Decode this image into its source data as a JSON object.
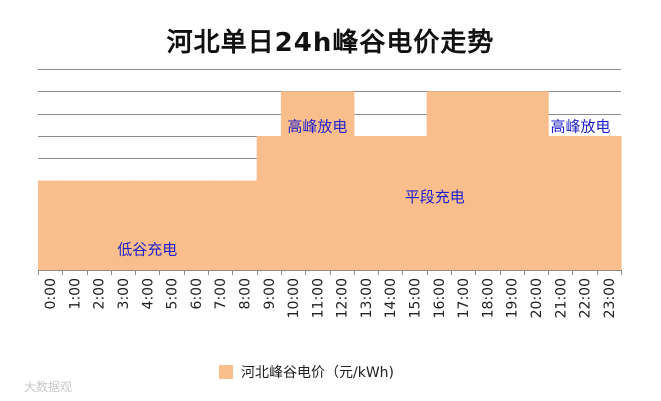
{
  "chart_data": {
    "type": "area",
    "title": "河北单日24h峰谷电价走势",
    "categories": [
      "0:00",
      "1:00",
      "2:00",
      "3:00",
      "4:00",
      "5:00",
      "6:00",
      "7:00",
      "8:00",
      "9:00",
      "10:00",
      "11:00",
      "12:00",
      "13:00",
      "14:00",
      "15:00",
      "16:00",
      "17:00",
      "18:00",
      "19:00",
      "20:00",
      "21:00",
      "22:00",
      "23:00"
    ],
    "series": [
      {
        "name": "河北峰谷电价（元/kWh)",
        "values": [
          2,
          2,
          2,
          2,
          2,
          2,
          2,
          2,
          2,
          3,
          4,
          4,
          4,
          3,
          3,
          3,
          4,
          4,
          4,
          4,
          4,
          3,
          3,
          3
        ],
        "color": "#F9BE8C"
      }
    ],
    "annotations": [
      {
        "text": "低谷充电",
        "x": "4:00",
        "y": 0.45
      },
      {
        "text": "高峰放电",
        "x": "11:00",
        "y": 3.2
      },
      {
        "text": "平段充电",
        "x": "15:50",
        "y": 1.62
      },
      {
        "text": "高峰放电",
        "x": "21:50",
        "y": 3.2
      }
    ],
    "annotation_color": "#2020CC",
    "ylim": [
      0,
      4.7
    ],
    "y_gridlines": [
      0,
      0.5,
      1,
      1.5,
      2,
      2.5,
      3,
      3.5,
      4,
      4.5
    ],
    "grid": true,
    "legend_position": "bottom",
    "xlabel": "",
    "ylabel": ""
  },
  "watermark": "大数据观"
}
